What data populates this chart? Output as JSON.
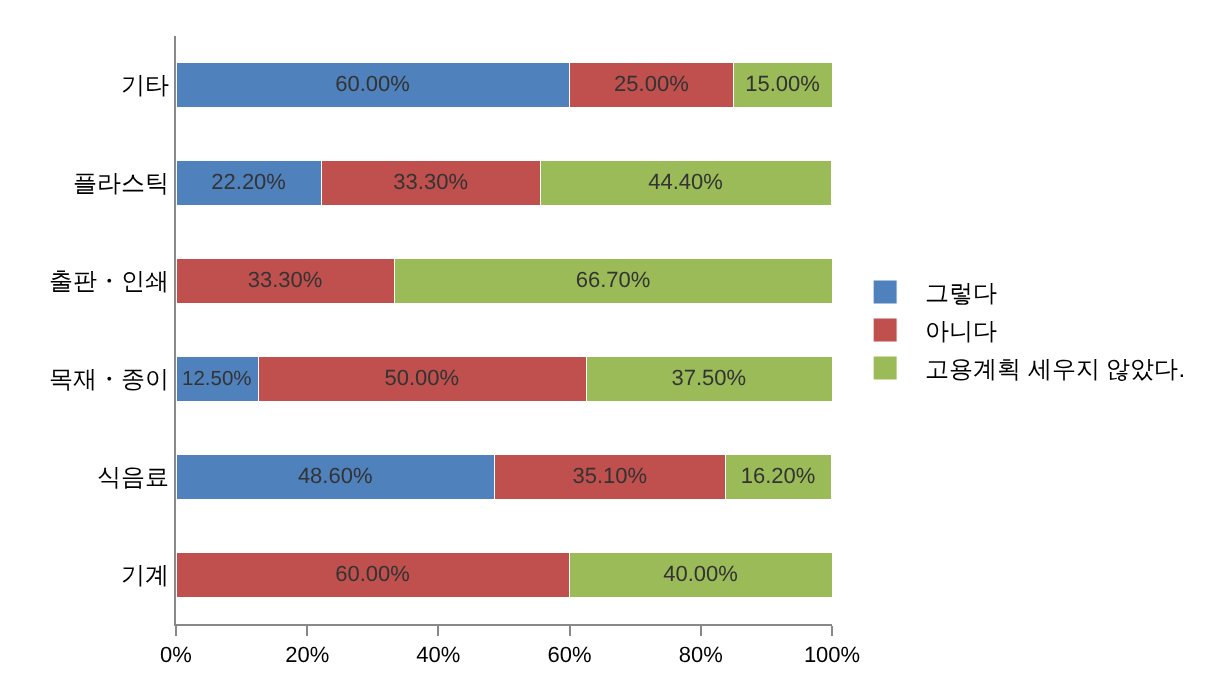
{
  "chart_data": {
    "type": "bar",
    "orientation": "horizontal",
    "stacked": true,
    "categories": [
      "기타",
      "플라스틱",
      "출판・인쇄",
      "목재・종이",
      "식음료",
      "기계"
    ],
    "series": [
      {
        "name": "그렇다",
        "color": "#4f81bd",
        "values": [
          60,
          22.2,
          0,
          12.5,
          48.6,
          0
        ],
        "value_labels": [
          "60.00%",
          "22.20%",
          null,
          "12.50%",
          "48.60%",
          null
        ]
      },
      {
        "name": "아니다",
        "color": "#c0504d",
        "values": [
          25,
          33.3,
          33.3,
          50,
          35.1,
          60
        ],
        "value_labels": [
          "25.00%",
          "33.30%",
          "33.30%",
          "50.00%",
          "35.10%",
          "60.00%"
        ]
      },
      {
        "name": "고용계획 세우지 않았다.",
        "color": "#9bbb59",
        "values": [
          15,
          44.4,
          66.7,
          37.5,
          16.2,
          40
        ],
        "value_labels": [
          "15.00%",
          "44.40%",
          "66.70%",
          "37.50%",
          "16.20%",
          "40.00%"
        ]
      }
    ],
    "xlim": [
      0,
      100
    ],
    "xticks": [
      {
        "value": 0,
        "label": "0%"
      },
      {
        "value": 20,
        "label": "20%"
      },
      {
        "value": 40,
        "label": "40%"
      },
      {
        "value": 60,
        "label": "60%"
      },
      {
        "value": 80,
        "label": "80%"
      },
      {
        "value": 100,
        "label": "100%"
      }
    ],
    "grid": false,
    "legend": "right"
  }
}
